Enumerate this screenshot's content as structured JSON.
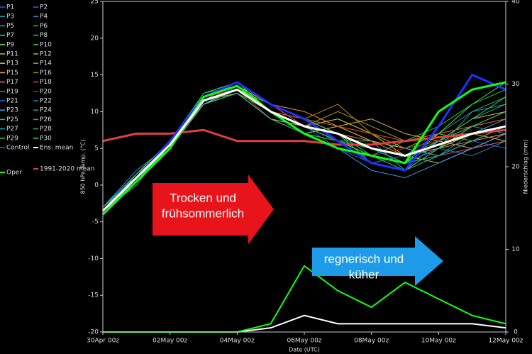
{
  "chart_data": {
    "type": "line",
    "ylabel": "850 hPa Temp. (°C)",
    "y2label": "Niederschlag (mm)",
    "xlabel": "Date (UTC)",
    "x": [
      0,
      1,
      2,
      3,
      4,
      5,
      6,
      7,
      8,
      9,
      10,
      11,
      12
    ],
    "xlim": [
      0,
      12
    ],
    "xticks": [
      {
        "value": 0,
        "label": "30Apr 00z"
      },
      {
        "value": 2,
        "label": "02May 00z"
      },
      {
        "value": 4,
        "label": "04May 00z"
      },
      {
        "value": 6,
        "label": "06May 00z"
      },
      {
        "value": 8,
        "label": "08May 00z"
      },
      {
        "value": 10,
        "label": "10May 00z"
      },
      {
        "value": 12,
        "label": "12May 00z"
      }
    ],
    "ylim": [
      -20,
      25
    ],
    "yticks": [
      -20,
      -15,
      -10,
      -5,
      0,
      5,
      10,
      15,
      20,
      25
    ],
    "y2lim": [
      0,
      40
    ],
    "y2ticks": [
      0,
      10,
      20,
      30,
      40
    ],
    "annotations": [
      {
        "lines": [
          "Trocken und",
          "frühsommerlich"
        ],
        "color": "#e8141b"
      },
      {
        "lines": [
          "regnerisch und",
          "küher"
        ],
        "color": "#1e9be8"
      }
    ],
    "series": [
      {
        "name": "P1",
        "color": "#3050ff",
        "values": [
          -3,
          1.5,
          6,
          12,
          14,
          11,
          9,
          7,
          4,
          2,
          6,
          9,
          10
        ]
      },
      {
        "name": "P2",
        "color": "#2a6cf0",
        "values": [
          -4,
          0.5,
          5,
          11,
          13.5,
          10,
          8,
          6,
          5,
          3,
          5,
          7,
          9
        ]
      },
      {
        "name": "P3",
        "color": "#2a9fb0",
        "values": [
          -3.5,
          1,
          6,
          12,
          13,
          10,
          7,
          8,
          6,
          5,
          6,
          8,
          7
        ]
      },
      {
        "name": "P4",
        "color": "#2890c8",
        "values": [
          -3,
          2,
          5.5,
          11,
          12.5,
          9,
          8,
          7,
          3,
          4,
          7,
          10,
          11
        ]
      },
      {
        "name": "P5",
        "color": "#20b0a0",
        "values": [
          -4,
          1,
          5,
          11.5,
          13,
          11,
          9,
          8,
          6,
          2,
          4,
          6,
          8
        ]
      },
      {
        "name": "P6",
        "color": "#20c060",
        "values": [
          -3.5,
          0,
          6,
          12,
          14,
          10,
          7,
          5,
          4,
          6,
          8,
          11,
          13
        ]
      },
      {
        "name": "P7",
        "color": "#30d0b0",
        "values": [
          -3,
          1,
          5,
          11,
          13,
          9,
          8,
          9,
          7,
          5,
          4,
          6,
          7
        ]
      },
      {
        "name": "P8",
        "color": "#28c870",
        "values": [
          -4,
          1.5,
          6,
          12,
          13.5,
          11,
          8,
          6,
          5,
          3,
          6,
          9,
          12
        ]
      },
      {
        "name": "P9",
        "color": "#70e040",
        "values": [
          -3.5,
          1,
          5.5,
          12.5,
          14,
          10,
          9,
          7,
          4,
          3,
          5,
          8,
          9
        ]
      },
      {
        "name": "P10",
        "color": "#30d030",
        "values": [
          -3,
          0.5,
          5,
          11,
          12.5,
          10,
          7,
          6,
          6,
          5,
          7,
          6,
          8
        ]
      },
      {
        "name": "P11",
        "color": "#c8c020",
        "values": [
          -4,
          1,
          6,
          11.5,
          13,
          9,
          8,
          9,
          7,
          4,
          5,
          7,
          6
        ]
      },
      {
        "name": "P12",
        "color": "#e0a020",
        "values": [
          -3.5,
          1.5,
          5.5,
          12,
          13.5,
          11,
          10,
          8,
          6,
          5,
          6,
          5,
          7
        ]
      },
      {
        "name": "P13",
        "color": "#b0d030",
        "values": [
          -3,
          1,
          5,
          11,
          13,
          10,
          9,
          7,
          5,
          4,
          3,
          5,
          6
        ]
      },
      {
        "name": "P14",
        "color": "#a0a020",
        "values": [
          -4,
          0.5,
          6,
          12,
          14,
          10,
          8,
          10,
          8,
          6,
          7,
          8,
          9
        ]
      },
      {
        "name": "P15",
        "color": "#e0b040",
        "values": [
          -3.5,
          1,
          5,
          11.5,
          12.5,
          9,
          7,
          8,
          9,
          7,
          6,
          9,
          10
        ]
      },
      {
        "name": "P16",
        "color": "#c08020",
        "values": [
          -3,
          1,
          6,
          12,
          13,
          11,
          9,
          11,
          7,
          5,
          6,
          7,
          8
        ]
      },
      {
        "name": "P17",
        "color": "#f07050",
        "values": [
          -4,
          1.5,
          5.5,
          11,
          13.5,
          10,
          8,
          7,
          6,
          4,
          5,
          6,
          7
        ]
      },
      {
        "name": "P18",
        "color": "#e05020",
        "values": [
          -3.5,
          1,
          5,
          12,
          13,
          10,
          9,
          8,
          7,
          6,
          7,
          8,
          9
        ]
      },
      {
        "name": "P19",
        "color": "#e04060",
        "values": [
          -3,
          0.5,
          6,
          11.5,
          14,
          11,
          8,
          7,
          5,
          3,
          4,
          5,
          6
        ]
      },
      {
        "name": "P20",
        "color": "#b02020",
        "values": [
          -4,
          1,
          5.5,
          12,
          13,
          9,
          7,
          6,
          4,
          5,
          6,
          7,
          8
        ]
      },
      {
        "name": "P21",
        "color": "#3060e0",
        "values": [
          -3.5,
          1.5,
          6,
          11,
          13.5,
          10,
          8,
          5,
          3,
          2,
          4,
          6,
          5
        ]
      },
      {
        "name": "P22",
        "color": "#2080b0",
        "values": [
          -3,
          1,
          5,
          12,
          14,
          11,
          9,
          6,
          4,
          3,
          5,
          4,
          6
        ]
      },
      {
        "name": "P23",
        "color": "#40a0f0",
        "values": [
          -4,
          0.5,
          5.5,
          11.5,
          13,
          10,
          7,
          5,
          2,
          1,
          3,
          5,
          7
        ]
      },
      {
        "name": "P24",
        "color": "#20a090",
        "values": [
          -3.5,
          1,
          6,
          12.5,
          13.5,
          10,
          8,
          6,
          4,
          2,
          4,
          7,
          9
        ]
      },
      {
        "name": "P25",
        "color": "#20b8b0",
        "values": [
          -3,
          1.5,
          5,
          11,
          12.5,
          9,
          7,
          6,
          5,
          3,
          6,
          8,
          10
        ]
      },
      {
        "name": "P26",
        "color": "#30b050",
        "values": [
          -4,
          1,
          6,
          12,
          14,
          11,
          9,
          7,
          4,
          2,
          5,
          10,
          12
        ]
      },
      {
        "name": "P27",
        "color": "#20a0a0",
        "values": [
          -3.5,
          0.5,
          5.5,
          11.5,
          13,
          10,
          8,
          7,
          5,
          3,
          4,
          6,
          8
        ]
      },
      {
        "name": "P28",
        "color": "#20b060",
        "values": [
          -3,
          1,
          5,
          12,
          13.5,
          10,
          7,
          6,
          5,
          4,
          6,
          9,
          11
        ]
      },
      {
        "name": "P29",
        "color": "#50c050",
        "values": [
          -4,
          1.5,
          6,
          11,
          13,
          11,
          9,
          7,
          3,
          2,
          5,
          8,
          10
        ]
      },
      {
        "name": "P30",
        "color": "#40e040",
        "values": [
          -3.5,
          1,
          5.5,
          12,
          14,
          10,
          8,
          6,
          4,
          3,
          7,
          11,
          14
        ]
      },
      {
        "name": "Control",
        "color": "#2030ff",
        "values": [
          -3.5,
          1,
          6,
          12,
          14,
          11,
          9,
          6,
          3,
          2,
          8,
          15,
          13
        ]
      },
      {
        "name": "Ens. mean",
        "color": "#ffffff",
        "values": [
          -3.5,
          1,
          5.5,
          11.5,
          13,
          10,
          8,
          7,
          5,
          4,
          5.5,
          7,
          8
        ],
        "precip": [
          0,
          0,
          0,
          0,
          0,
          0.5,
          2,
          1,
          1,
          1,
          1,
          1,
          0.5
        ]
      },
      {
        "name": "1991-2020 mean",
        "color": "#e04040",
        "values": [
          6,
          7,
          7,
          7.5,
          6,
          6,
          6,
          5.5,
          5.5,
          6,
          6.5,
          7,
          7.5
        ]
      },
      {
        "name": "Oper",
        "color": "#10ff10",
        "values": [
          -4,
          0.5,
          5,
          12,
          13.5,
          10,
          7,
          5,
          4,
          3,
          10,
          13,
          14
        ],
        "precip": [
          0,
          0,
          0,
          0,
          0,
          1,
          8,
          5,
          3,
          6,
          4,
          2,
          1
        ]
      }
    ]
  }
}
